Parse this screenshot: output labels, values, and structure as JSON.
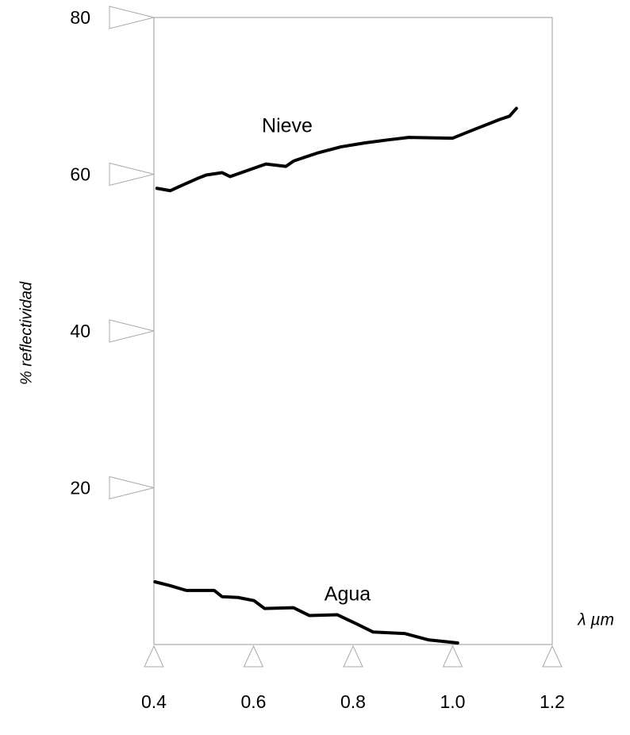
{
  "chart_data": {
    "type": "line",
    "y_label": "% reflectividad",
    "x_label": "λ µm",
    "annotations": [
      "Nieve",
      "Agua"
    ],
    "xlim": [
      0.4,
      1.2
    ],
    "xticks": [
      0.4,
      0.6,
      0.8,
      {
        "value": 1,
        "label": "1.0"
      },
      1.2
    ],
    "ylim": [
      0,
      80
    ],
    "yticks": [
      20,
      40,
      60,
      80
    ],
    "series": [
      {
        "name": "Nieve",
        "color": "#000000",
        "x": [
          0.406,
          0.433,
          0.457,
          0.489,
          0.505,
          0.537,
          0.553,
          0.593,
          0.625,
          0.665,
          0.681,
          0.728,
          0.776,
          0.824,
          0.872,
          0.912,
          1.0,
          1.031,
          1.095,
          1.114,
          1.128
        ],
        "values": [
          58.2,
          57.9,
          58.6,
          59.5,
          59.9,
          60.2,
          59.7,
          60.6,
          61.3,
          61.0,
          61.7,
          62.7,
          63.5,
          64.0,
          64.4,
          64.7,
          64.6,
          65.4,
          67.0,
          67.4,
          68.4
        ]
      },
      {
        "name": "Agua",
        "color": "#000000",
        "x": [
          0.402,
          0.433,
          0.465,
          0.521,
          0.537,
          0.569,
          0.601,
          0.622,
          0.68,
          0.712,
          0.768,
          0.808,
          0.84,
          0.904,
          0.951,
          1.01
        ],
        "values": [
          8.0,
          7.5,
          6.9,
          6.9,
          6.1,
          6.0,
          5.6,
          4.6,
          4.7,
          3.7,
          3.8,
          2.6,
          1.6,
          1.4,
          0.6,
          0.2
        ]
      }
    ]
  }
}
